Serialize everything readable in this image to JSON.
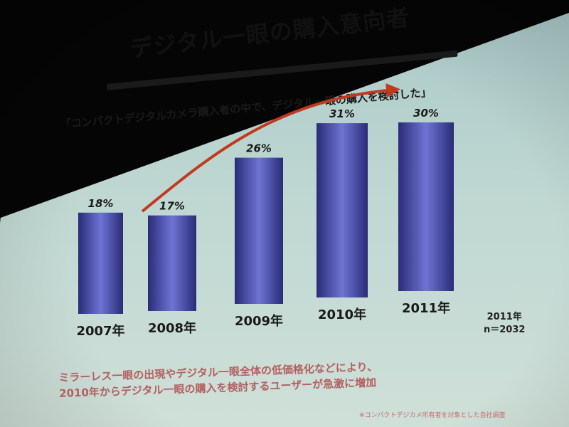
{
  "slide": {
    "title": "デジタル一眼の購入意向者",
    "subtitle": "「コンパクトデジタルカメラ購入者の中で、デジタル一眼の購入を検討した」",
    "note_year": "2011年",
    "note_n": "n＝2032",
    "footnote_line1": "ミラーレス一眼の出現やデジタル一眼全体の低価格化などにより、",
    "footnote_line2": "2010年からデジタル一眼の購入を検討するユーザーが急激に増加",
    "source": "※コンパクトデジカメ所有者を対象とした自社調査"
  },
  "chart_data": {
    "type": "bar",
    "categories": [
      "2007年",
      "2008年",
      "2009年",
      "2010年",
      "2011年"
    ],
    "values": [
      18,
      17,
      26,
      31,
      30
    ],
    "value_labels": [
      "18%",
      "17%",
      "26%",
      "31%",
      "30%"
    ],
    "ylim": [
      0,
      34
    ],
    "bar_color": "#3b3f9b",
    "trend_arrow_color": "#c23a1e",
    "grid": false,
    "legend": false
  }
}
